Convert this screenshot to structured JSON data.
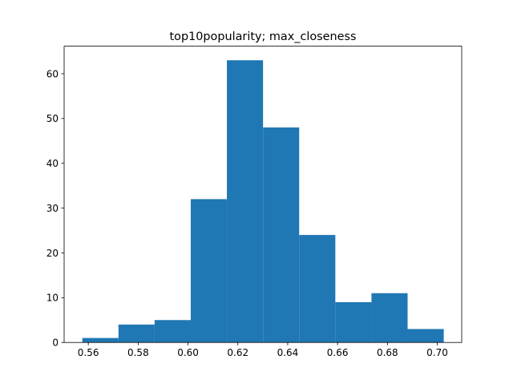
{
  "chart_data": {
    "type": "bar",
    "subtype": "histogram",
    "title": "top10popularity; max_closeness",
    "xlabel": "",
    "ylabel": "",
    "bins": [
      {
        "x0": 0.5576,
        "x1": 0.5721,
        "count": 1
      },
      {
        "x0": 0.5721,
        "x1": 0.5866,
        "count": 4
      },
      {
        "x0": 0.5866,
        "x1": 0.6011,
        "count": 5
      },
      {
        "x0": 0.6011,
        "x1": 0.6156,
        "count": 32
      },
      {
        "x0": 0.6156,
        "x1": 0.6301,
        "count": 63
      },
      {
        "x0": 0.6301,
        "x1": 0.6446,
        "count": 48
      },
      {
        "x0": 0.6446,
        "x1": 0.6591,
        "count": 24
      },
      {
        "x0": 0.6591,
        "x1": 0.6736,
        "count": 9
      },
      {
        "x0": 0.6736,
        "x1": 0.6881,
        "count": 11
      },
      {
        "x0": 0.6881,
        "x1": 0.7026,
        "count": 3
      }
    ],
    "xlim": [
      0.5503,
      0.7098
    ],
    "ylim": [
      0,
      66.15
    ],
    "xticks": [
      0.56,
      0.58,
      0.6,
      0.62,
      0.64,
      0.66,
      0.68,
      0.7
    ],
    "xtick_labels": [
      "0.56",
      "0.58",
      "0.60",
      "0.62",
      "0.64",
      "0.66",
      "0.68",
      "0.70"
    ],
    "yticks": [
      0,
      10,
      20,
      30,
      40,
      50,
      60
    ],
    "ytick_labels": [
      "0",
      "10",
      "20",
      "30",
      "40",
      "50",
      "60"
    ],
    "bar_color": "#1f77b4",
    "grid": false,
    "legend": "none"
  }
}
